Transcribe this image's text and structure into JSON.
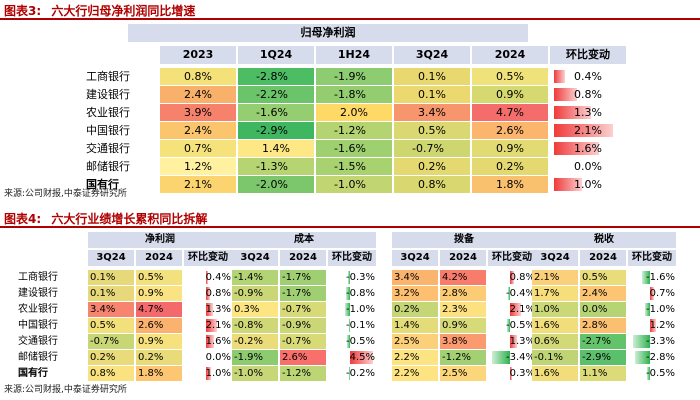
{
  "fig3": {
    "label": "图表3:",
    "title": "六大行归母净利润同比增速",
    "group_header": "归母净利润",
    "columns": [
      "2023",
      "1Q24",
      "1H24",
      "3Q24",
      "2024",
      "环比变动"
    ],
    "rows": [
      {
        "bank": "工商银行",
        "values": [
          "0.8%",
          "-2.8%",
          "-1.9%",
          "0.1%",
          "0.5%"
        ],
        "change": "0.4%",
        "change_num": 0.4,
        "colors": [
          "#f4e17a",
          "#4dbd64",
          "#8dcc71",
          "#e9d86f",
          "#f0e27a"
        ]
      },
      {
        "bank": "建设银行",
        "values": [
          "2.4%",
          "-2.2%",
          "-1.8%",
          "0.1%",
          "0.9%"
        ],
        "change": "0.8%",
        "change_num": 0.8,
        "colors": [
          "#f9b06b",
          "#6cc46a",
          "#93cd70",
          "#ebd96f",
          "#d6d96f"
        ]
      },
      {
        "bank": "农业银行",
        "values": [
          "3.9%",
          "-1.6%",
          "2.0%",
          "3.4%",
          "4.7%"
        ],
        "change": "1.3%",
        "change_num": 1.3,
        "colors": [
          "#f6826c",
          "#94ce70",
          "#ffd966",
          "#f7966d",
          "#f56d6b"
        ]
      },
      {
        "bank": "中国银行",
        "values": [
          "2.4%",
          "-2.9%",
          "-1.2%",
          "0.5%",
          "2.6%"
        ],
        "change": "2.1%",
        "change_num": 2.1,
        "colors": [
          "#fbc56e",
          "#3fb760",
          "#b4d472",
          "#dad870",
          "#fbb56d"
        ]
      },
      {
        "bank": "交通银行",
        "values": [
          "0.7%",
          "1.4%",
          "-1.6%",
          "-0.7%",
          "0.9%"
        ],
        "change": "1.6%",
        "change_num": 1.6,
        "colors": [
          "#f5e27a",
          "#fde885",
          "#9fd070",
          "#cdd66f",
          "#e2db74"
        ]
      },
      {
        "bank": "邮储银行",
        "values": [
          "1.2%",
          "-1.3%",
          "-1.5%",
          "0.2%",
          "0.2%"
        ],
        "change": "0.0%",
        "change_num": 0.0,
        "colors": [
          "#fff1a0",
          "#b6d472",
          "#a8d170",
          "#e4d970",
          "#e4d970"
        ]
      },
      {
        "bank": "国有行",
        "values": [
          "2.1%",
          "-2.0%",
          "-1.0%",
          "0.8%",
          "1.8%"
        ],
        "change": "1.0%",
        "change_num": 1.0,
        "colors": [
          "#fbd46f",
          "#7cc76c",
          "#c1d673",
          "#d9d870",
          "#f9c06e"
        ]
      }
    ],
    "source": "来源:公司财报,中泰证券研究所"
  },
  "fig4": {
    "label": "图表4:",
    "title": "六大行业绩增长累积同比拆解",
    "groups": [
      "净利润",
      "成本",
      "拨备",
      "税收"
    ],
    "subcolumns": [
      "3Q24",
      "2024",
      "环比变动"
    ],
    "rows": [
      {
        "bank": "工商银行",
        "cells": [
          [
            "0.1%",
            "0.5%",
            "0.4%"
          ],
          [
            "-1.4%",
            "-1.7%",
            "-0.3%"
          ],
          [
            "3.4%",
            "4.2%",
            "0.8%"
          ],
          [
            "2.1%",
            "0.5%",
            "-1.6%"
          ]
        ],
        "nums": [
          0.4,
          -0.3,
          0.8,
          -1.6
        ],
        "colors": [
          [
            "#e7d97a",
            "#f3e17d"
          ],
          [
            "#b2d475",
            "#9fcf72"
          ],
          [
            "#fbb46e",
            "#f77c6c"
          ],
          [
            "#fbd07a",
            "#e9dc7a"
          ]
        ]
      },
      {
        "bank": "建设银行",
        "cells": [
          [
            "0.1%",
            "0.9%",
            "0.8%"
          ],
          [
            "-0.9%",
            "-1.7%",
            "-0.8%"
          ],
          [
            "3.2%",
            "2.8%",
            "-0.4%"
          ],
          [
            "1.7%",
            "2.4%",
            "0.7%"
          ]
        ],
        "nums": [
          0.8,
          -0.8,
          -0.4,
          0.7
        ],
        "colors": [
          [
            "#e7d97a",
            "#fbe383"
          ],
          [
            "#cbd777",
            "#9fcf72"
          ],
          [
            "#fcc070",
            "#fccc74"
          ],
          [
            "#f6df7b",
            "#fcc574"
          ]
        ]
      },
      {
        "bank": "农业银行",
        "cells": [
          [
            "3.4%",
            "4.7%",
            "1.3%"
          ],
          [
            "0.3%",
            "-0.7%",
            "-1.0%"
          ],
          [
            "0.2%",
            "2.3%",
            "2.1%"
          ],
          [
            "1.0%",
            "0.0%",
            "-1.0%"
          ]
        ],
        "nums": [
          1.3,
          -1.0,
          2.1,
          -1.0
        ],
        "colors": [
          [
            "#f7846e",
            "#f4696b"
          ],
          [
            "#fde682",
            "#d8da78"
          ],
          [
            "#c4d676",
            "#fde080"
          ],
          [
            "#cad877",
            "#b7d475"
          ]
        ]
      },
      {
        "bank": "中国银行",
        "cells": [
          [
            "0.5%",
            "2.6%",
            "2.1%"
          ],
          [
            "-0.8%",
            "-0.9%",
            "-0.1%"
          ],
          [
            "1.4%",
            "0.9%",
            "-0.5%"
          ],
          [
            "1.6%",
            "2.8%",
            "1.2%"
          ]
        ],
        "nums": [
          2.1,
          -0.1,
          -0.5,
          1.2
        ],
        "colors": [
          [
            "#f2e07b",
            "#fbb26e"
          ],
          [
            "#cfd877",
            "#cbd777"
          ],
          [
            "#e4db79",
            "#d6da78"
          ],
          [
            "#f1de7b",
            "#fbbf72"
          ]
        ]
      },
      {
        "bank": "交通银行",
        "cells": [
          [
            "-0.7%",
            "0.9%",
            "1.6%"
          ],
          [
            "-0.2%",
            "-0.7%",
            "-0.5%"
          ],
          [
            "2.5%",
            "3.8%",
            "1.3%"
          ],
          [
            "0.6%",
            "-2.7%",
            "-3.3%"
          ]
        ],
        "nums": [
          1.6,
          -0.5,
          1.3,
          -3.3
        ],
        "colors": [
          [
            "#c7d776",
            "#f7e17d"
          ],
          [
            "#ebdc7a",
            "#d8da78"
          ],
          [
            "#fcd079",
            "#fa9a6e"
          ],
          [
            "#d3d977",
            "#63c36b"
          ]
        ]
      },
      {
        "bank": "邮储银行",
        "cells": [
          [
            "0.2%",
            "0.2%",
            "0.0%"
          ],
          [
            "-1.9%",
            "2.6%",
            "4.5%"
          ],
          [
            "2.2%",
            "-1.2%",
            "-3.4%"
          ],
          [
            "-0.1%",
            "-2.9%",
            "-2.8%"
          ]
        ],
        "nums": [
          0.0,
          4.5,
          -3.4,
          -2.8
        ],
        "colors": [
          [
            "#e9da7a",
            "#e9da7a"
          ],
          [
            "#8dcb70",
            "#f7706b"
          ],
          [
            "#fde482",
            "#a2d073"
          ],
          [
            "#bfd575",
            "#5bc06b"
          ]
        ]
      },
      {
        "bank": "国有行",
        "cells": [
          [
            "0.8%",
            "1.8%",
            "1.0%"
          ],
          [
            "-1.0%",
            "-1.2%",
            "-0.2%"
          ],
          [
            "2.2%",
            "2.5%",
            "0.3%"
          ],
          [
            "1.6%",
            "1.1%",
            "-0.5%"
          ]
        ],
        "nums": [
          1.0,
          -0.2,
          0.3,
          -0.5
        ],
        "colors": [
          [
            "#f9e27f",
            "#fcc673"
          ],
          [
            "#c7d676",
            "#bcd575"
          ],
          [
            "#fde381",
            "#fcd67a"
          ],
          [
            "#f1de7b",
            "#dcdb79"
          ]
        ]
      }
    ],
    "source": "来源:公司财报,中泰证券研究所"
  }
}
